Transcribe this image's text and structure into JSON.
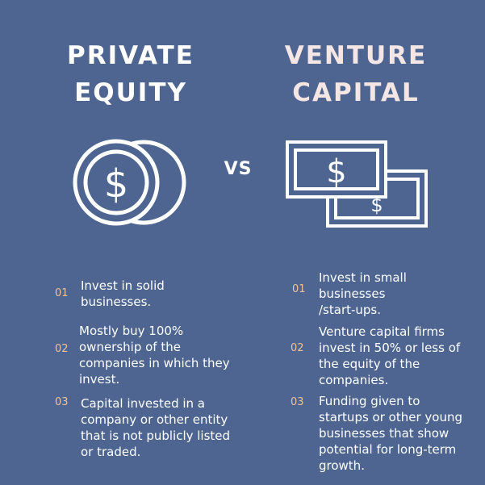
{
  "left": {
    "title_line1": "PRIVATE",
    "title_line2": "EQUITY",
    "icon": "coins-icon",
    "items": [
      {
        "num": "01",
        "text": "Invest in solid\nbusinesses."
      },
      {
        "num": "02",
        "text": "Mostly buy 100%\nownership of the\ncompanies in which they\ninvest."
      },
      {
        "num": "03",
        "text": "Capital invested in a\ncompany or other entity\nthat is not publicly listed\nor traded."
      }
    ]
  },
  "vs": "VS",
  "right": {
    "title_line1": "VENTURE",
    "title_line2": "CAPITAL",
    "icon": "banknotes-icon",
    "items": [
      {
        "num": "01",
        "text": "Invest in small\nbusinesses\n/start-ups."
      },
      {
        "num": "02",
        "text": "Venture capital firms\ninvest in 50% or less of\nthe equity of the\ncompanies."
      },
      {
        "num": "03",
        "text": "Funding given to\nstartups or other young\nbusinesses that show\npotential for long-term\ngrowth."
      }
    ]
  },
  "colors": {
    "background": "#4d6590",
    "number_accent": "#f0c29a",
    "right_title": "#f4e6e4",
    "text": "#ffffff"
  }
}
